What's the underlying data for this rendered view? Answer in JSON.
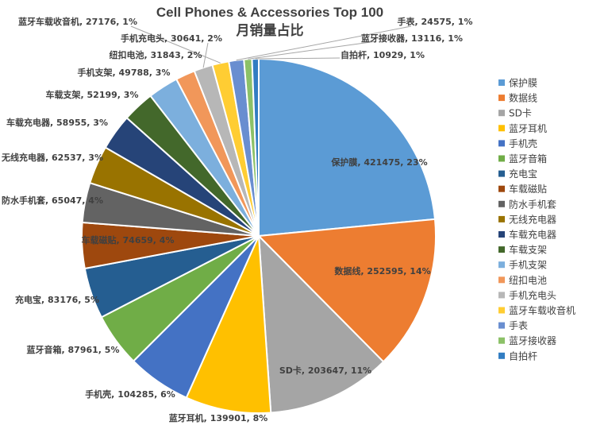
{
  "chart_data": {
    "type": "pie",
    "title": "Cell Phones & Accessories Top 100",
    "subtitle": "月销量占比",
    "legend_position": "right",
    "slices": [
      {
        "name": "保护膜",
        "value": 421475,
        "percent": "23%",
        "color": "#5B9BD5"
      },
      {
        "name": "数据线",
        "value": 252595,
        "percent": "14%",
        "color": "#ED7D31"
      },
      {
        "name": "SD卡",
        "value": 203647,
        "percent": "11%",
        "color": "#A5A5A5"
      },
      {
        "name": "蓝牙耳机",
        "value": 139901,
        "percent": "8%",
        "color": "#FFC000"
      },
      {
        "name": "手机壳",
        "value": 104285,
        "percent": "6%",
        "color": "#4472C4"
      },
      {
        "name": "蓝牙音箱",
        "value": 87961,
        "percent": "5%",
        "color": "#70AD47"
      },
      {
        "name": "充电宝",
        "value": 83176,
        "percent": "5%",
        "color": "#255E91"
      },
      {
        "name": "车载磁贴",
        "value": 74659,
        "percent": "4%",
        "color": "#9E480E"
      },
      {
        "name": "防水手机套",
        "value": 65047,
        "percent": "4%",
        "color": "#636363"
      },
      {
        "name": "无线充电器",
        "value": 62537,
        "percent": "3%",
        "color": "#997300"
      },
      {
        "name": "车载充电器",
        "value": 58955,
        "percent": "3%",
        "color": "#264478"
      },
      {
        "name": "车载支架",
        "value": 52199,
        "percent": "3%",
        "color": "#43682B"
      },
      {
        "name": "手机支架",
        "value": 49788,
        "percent": "3%",
        "color": "#7CAFDD"
      },
      {
        "name": "纽扣电池",
        "value": 31843,
        "percent": "2%",
        "color": "#F1975A"
      },
      {
        "name": "手机充电头",
        "value": 30641,
        "percent": "2%",
        "color": "#B7B7B7"
      },
      {
        "name": "蓝牙车载收音机",
        "value": 27176,
        "percent": "1%",
        "color": "#FFCD33"
      },
      {
        "name": "手表",
        "value": 24575,
        "percent": "1%",
        "color": "#698ED0"
      },
      {
        "name": "蓝牙接收器",
        "value": 13116,
        "percent": "1%",
        "color": "#8CC168"
      },
      {
        "name": "自拍杆",
        "value": 10929,
        "percent": "1%",
        "color": "#327DC2"
      }
    ]
  }
}
